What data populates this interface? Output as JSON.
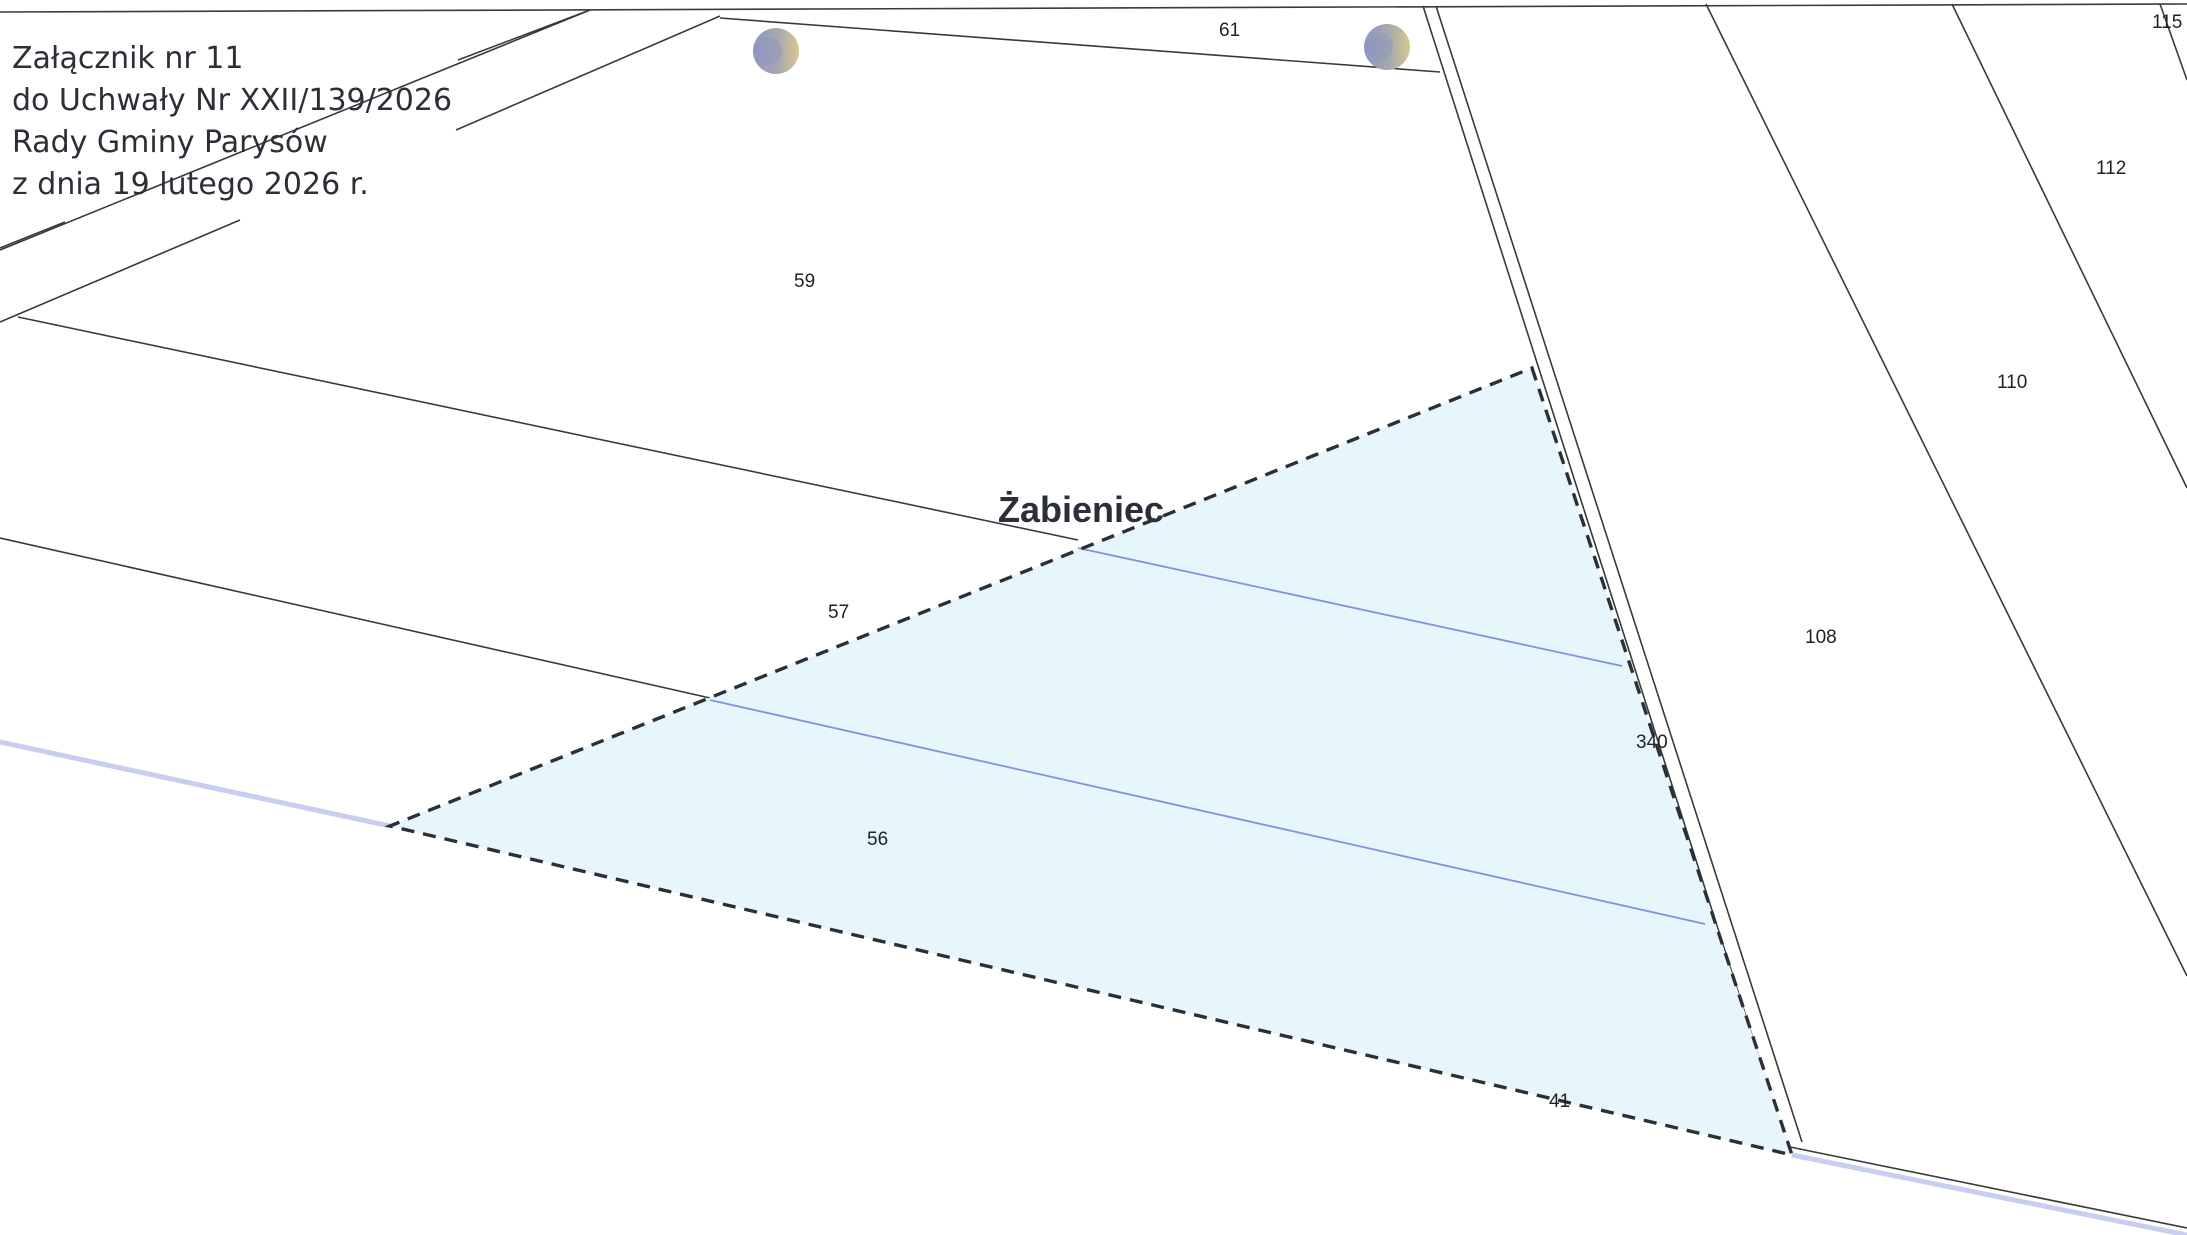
{
  "header_note": {
    "line1": "Załącznik nr 11",
    "line2": "do Uchwały Nr XXII/139/2026",
    "line3": "Rady Gminy Parysów",
    "line4": "z dnia 19 lutego 2026 r."
  },
  "place_name": "Żabieniec",
  "parcels": {
    "p61": "61",
    "p59": "59",
    "p57": "57",
    "p56": "56",
    "p41": "41",
    "p340": "340",
    "p108": "108",
    "p110": "110",
    "p112": "112",
    "p115": "115"
  },
  "colors": {
    "highlight_fill": "#e6f6fa",
    "dashed_boundary": "#2b2f38",
    "inner_boundary": "#7f93e0",
    "parcel_lines": "#3a3a3a",
    "road_edge": "#c9cdf2"
  },
  "markers": [
    "boundary-point-marker",
    "boundary-point-marker"
  ]
}
